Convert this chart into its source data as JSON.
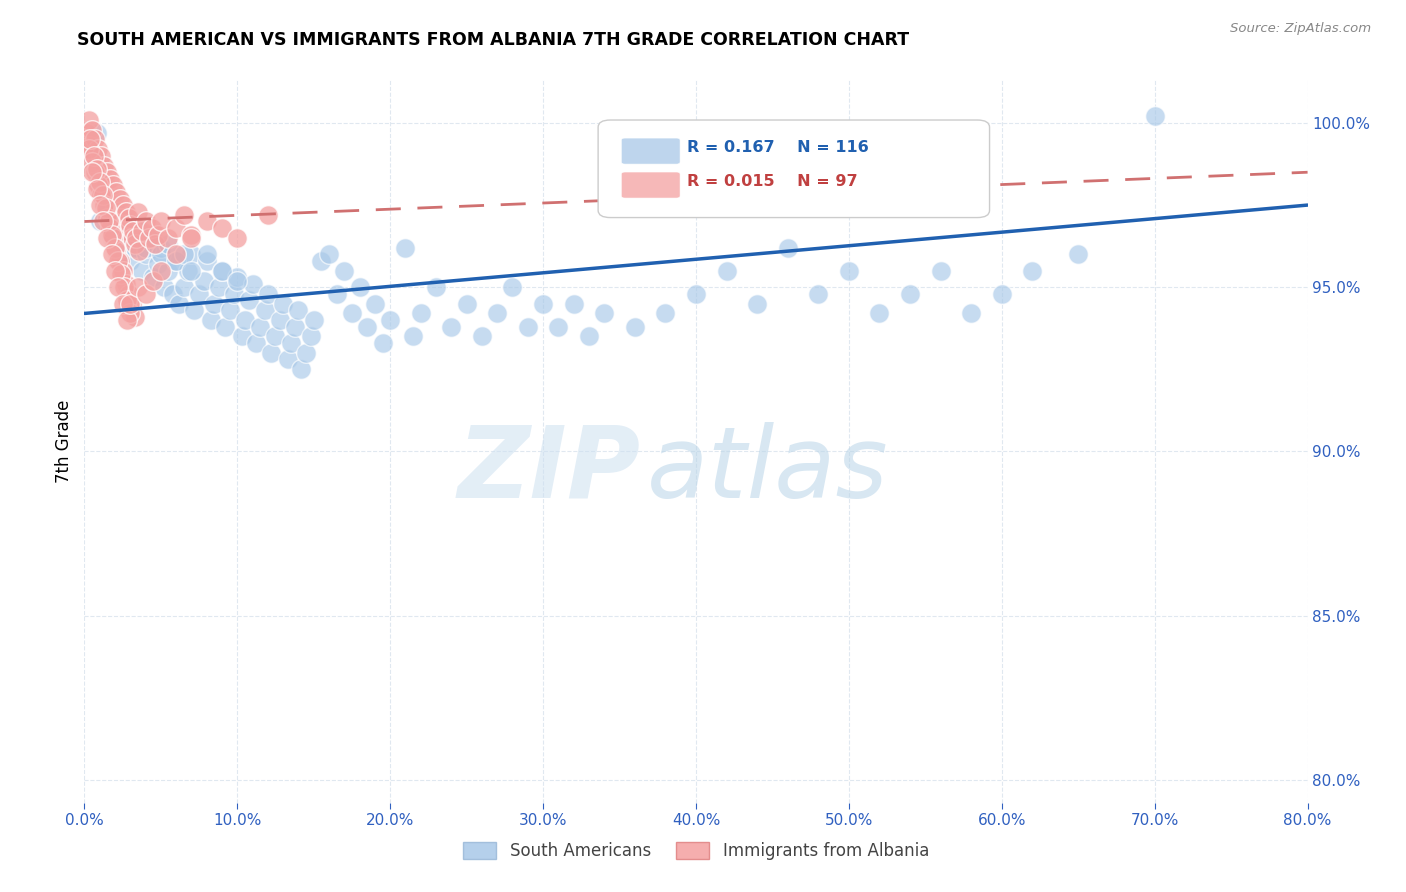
{
  "title": "SOUTH AMERICAN VS IMMIGRANTS FROM ALBANIA 7TH GRADE CORRELATION CHART",
  "source": "Source: ZipAtlas.com",
  "ylabel": "7th Grade",
  "ytick_values": [
    0.8,
    0.85,
    0.9,
    0.95,
    1.0
  ],
  "xmin": 0.0,
  "xmax": 0.8,
  "ymin": 0.793,
  "ymax": 1.013,
  "blue_R": "R = 0.167",
  "blue_N": "N = 116",
  "pink_R": "R = 0.015",
  "pink_N": "N = 97",
  "watermark_zip": "ZIP",
  "watermark_atlas": "atlas",
  "legend_blue": "South Americans",
  "legend_pink": "Immigrants from Albania",
  "blue_color": "#a8c8e8",
  "pink_color": "#f4a0a0",
  "blue_line_color": "#2060b0",
  "pink_line_color": "#d07070",
  "blue_scatter_x": [
    0.005,
    0.008,
    0.01,
    0.012,
    0.015,
    0.018,
    0.02,
    0.022,
    0.025,
    0.028,
    0.03,
    0.033,
    0.035,
    0.038,
    0.04,
    0.042,
    0.045,
    0.048,
    0.05,
    0.052,
    0.055,
    0.058,
    0.06,
    0.062,
    0.065,
    0.068,
    0.07,
    0.072,
    0.075,
    0.078,
    0.08,
    0.083,
    0.085,
    0.088,
    0.09,
    0.092,
    0.095,
    0.098,
    0.1,
    0.103,
    0.105,
    0.108,
    0.11,
    0.112,
    0.115,
    0.118,
    0.12,
    0.122,
    0.125,
    0.128,
    0.13,
    0.133,
    0.135,
    0.138,
    0.14,
    0.142,
    0.145,
    0.148,
    0.15,
    0.155,
    0.16,
    0.165,
    0.17,
    0.175,
    0.18,
    0.185,
    0.19,
    0.195,
    0.2,
    0.21,
    0.215,
    0.22,
    0.23,
    0.24,
    0.25,
    0.26,
    0.27,
    0.28,
    0.29,
    0.3,
    0.31,
    0.32,
    0.33,
    0.34,
    0.36,
    0.38,
    0.4,
    0.42,
    0.44,
    0.46,
    0.48,
    0.5,
    0.52,
    0.54,
    0.56,
    0.58,
    0.6,
    0.62,
    0.65,
    0.7,
    0.01,
    0.015,
    0.02,
    0.025,
    0.03,
    0.035,
    0.04,
    0.045,
    0.05,
    0.055,
    0.06,
    0.065,
    0.07,
    0.08,
    0.09,
    0.1
  ],
  "blue_scatter_y": [
    0.99,
    0.997,
    0.988,
    0.978,
    0.975,
    0.965,
    0.968,
    0.972,
    0.96,
    0.97,
    0.958,
    0.962,
    0.967,
    0.955,
    0.96,
    0.965,
    0.953,
    0.957,
    0.962,
    0.95,
    0.955,
    0.948,
    0.958,
    0.945,
    0.95,
    0.955,
    0.96,
    0.943,
    0.948,
    0.952,
    0.958,
    0.94,
    0.945,
    0.95,
    0.955,
    0.938,
    0.943,
    0.948,
    0.953,
    0.935,
    0.94,
    0.946,
    0.951,
    0.933,
    0.938,
    0.943,
    0.948,
    0.93,
    0.935,
    0.94,
    0.945,
    0.928,
    0.933,
    0.938,
    0.943,
    0.925,
    0.93,
    0.935,
    0.94,
    0.958,
    0.96,
    0.948,
    0.955,
    0.942,
    0.95,
    0.938,
    0.945,
    0.933,
    0.94,
    0.962,
    0.935,
    0.942,
    0.95,
    0.938,
    0.945,
    0.935,
    0.942,
    0.95,
    0.938,
    0.945,
    0.938,
    0.945,
    0.935,
    0.942,
    0.938,
    0.942,
    0.948,
    0.955,
    0.945,
    0.962,
    0.948,
    0.955,
    0.942,
    0.948,
    0.955,
    0.942,
    0.948,
    0.955,
    0.96,
    1.002,
    0.97,
    0.975,
    0.968,
    0.972,
    0.965,
    0.968,
    0.962,
    0.965,
    0.96,
    0.963,
    0.958,
    0.96,
    0.955,
    0.96,
    0.955,
    0.952
  ],
  "pink_scatter_x": [
    0.002,
    0.003,
    0.004,
    0.005,
    0.006,
    0.007,
    0.008,
    0.009,
    0.01,
    0.011,
    0.012,
    0.013,
    0.014,
    0.015,
    0.016,
    0.017,
    0.018,
    0.019,
    0.02,
    0.021,
    0.022,
    0.023,
    0.024,
    0.025,
    0.026,
    0.027,
    0.028,
    0.029,
    0.03,
    0.031,
    0.032,
    0.033,
    0.034,
    0.035,
    0.036,
    0.038,
    0.04,
    0.042,
    0.044,
    0.046,
    0.048,
    0.05,
    0.055,
    0.06,
    0.065,
    0.07,
    0.08,
    0.09,
    0.1,
    0.12,
    0.003,
    0.005,
    0.007,
    0.009,
    0.011,
    0.013,
    0.015,
    0.017,
    0.019,
    0.021,
    0.023,
    0.025,
    0.027,
    0.029,
    0.031,
    0.033,
    0.004,
    0.006,
    0.008,
    0.01,
    0.012,
    0.014,
    0.016,
    0.018,
    0.02,
    0.022,
    0.024,
    0.026,
    0.028,
    0.03,
    0.005,
    0.008,
    0.01,
    0.012,
    0.015,
    0.018,
    0.02,
    0.022,
    0.025,
    0.028,
    0.03,
    0.035,
    0.04,
    0.045,
    0.05,
    0.06,
    0.07
  ],
  "pink_scatter_y": [
    0.997,
    1.001,
    0.993,
    0.998,
    0.99,
    0.995,
    0.988,
    0.992,
    0.985,
    0.99,
    0.983,
    0.987,
    0.981,
    0.985,
    0.979,
    0.983,
    0.977,
    0.981,
    0.975,
    0.979,
    0.973,
    0.977,
    0.971,
    0.975,
    0.969,
    0.973,
    0.967,
    0.971,
    0.969,
    0.965,
    0.967,
    0.963,
    0.965,
    0.973,
    0.961,
    0.967,
    0.97,
    0.965,
    0.968,
    0.963,
    0.966,
    0.97,
    0.965,
    0.968,
    0.972,
    0.966,
    0.97,
    0.968,
    0.965,
    0.972,
    0.992,
    0.988,
    0.985,
    0.981,
    0.978,
    0.975,
    0.971,
    0.968,
    0.965,
    0.961,
    0.958,
    0.955,
    0.951,
    0.948,
    0.945,
    0.941,
    0.995,
    0.99,
    0.986,
    0.982,
    0.978,
    0.974,
    0.97,
    0.966,
    0.962,
    0.958,
    0.954,
    0.95,
    0.946,
    0.942,
    0.985,
    0.98,
    0.975,
    0.97,
    0.965,
    0.96,
    0.955,
    0.95,
    0.945,
    0.94,
    0.945,
    0.95,
    0.948,
    0.952,
    0.955,
    0.96,
    0.965
  ],
  "blue_trend_x": [
    0.0,
    0.8
  ],
  "blue_trend_y": [
    0.942,
    0.975
  ],
  "pink_trend_x": [
    0.0,
    0.8
  ],
  "pink_trend_y": [
    0.97,
    0.985
  ],
  "grid_color": "#e0e8f0",
  "axis_label_color": "#3060c0",
  "tick_color": "#3060c0",
  "background_color": "#ffffff"
}
